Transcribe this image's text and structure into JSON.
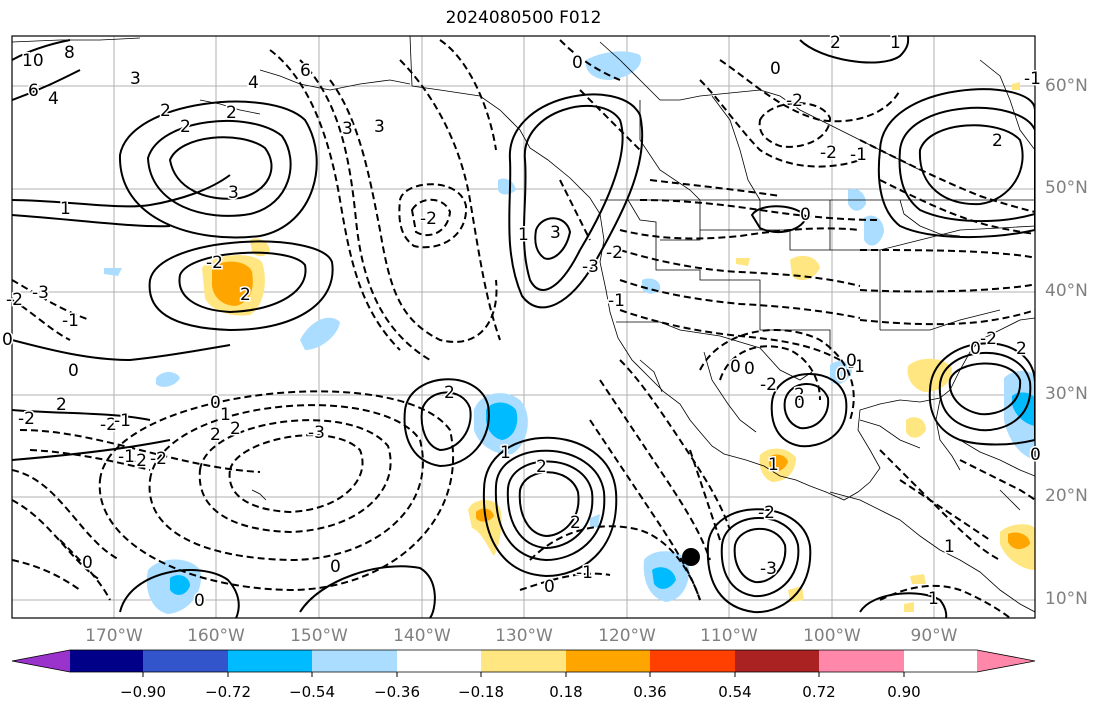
{
  "title": "2024080500 F012",
  "latitude_labels": [
    "60°N",
    "50°N",
    "40°N",
    "30°N",
    "20°N",
    "10°N"
  ],
  "longitude_labels": [
    "170°W",
    "160°W",
    "150°W",
    "140°W",
    "130°W",
    "120°W",
    "110°W",
    "100°W",
    "90°W"
  ],
  "colorbar": {
    "tick_labels": [
      "−0.90",
      "−0.72",
      "−0.54",
      "−0.36",
      "−0.18",
      "0.18",
      "0.36",
      "0.54",
      "0.72",
      "0.90"
    ],
    "colors": [
      "#9933cc",
      "#000088",
      "#3355cc",
      "#00bbff",
      "#aaddff",
      "#ffffff",
      "#ffe680",
      "#ffa500",
      "#ff4000",
      "#aa2222",
      "#ff88aa"
    ]
  },
  "contour_labels": [
    "10",
    "8",
    "6",
    "4",
    "3",
    "6",
    "4",
    "3",
    "2",
    "1",
    "0",
    "-1",
    "-2",
    "-3",
    "2",
    "-2",
    "2",
    "-3",
    "2",
    "-2",
    "0",
    "2",
    "-2",
    "-1",
    "0",
    "-2",
    "0",
    "2",
    "3",
    "2",
    "1",
    "0",
    "1",
    "2",
    "2",
    "-2",
    "3",
    "3",
    "2",
    "-1",
    "-2",
    "0",
    "0",
    "-1",
    "-2",
    "-3",
    "-1",
    "0",
    "-2",
    "-3",
    "2",
    "1",
    "1",
    "1",
    "0",
    "2",
    "1",
    "0",
    "-2",
    "2",
    "1",
    "0",
    "-1",
    "0",
    "0",
    "0",
    "0",
    "-2",
    "-1",
    "0",
    "-1",
    "-2",
    "-2",
    "0",
    "2"
  ],
  "marker": "filled-circle"
}
